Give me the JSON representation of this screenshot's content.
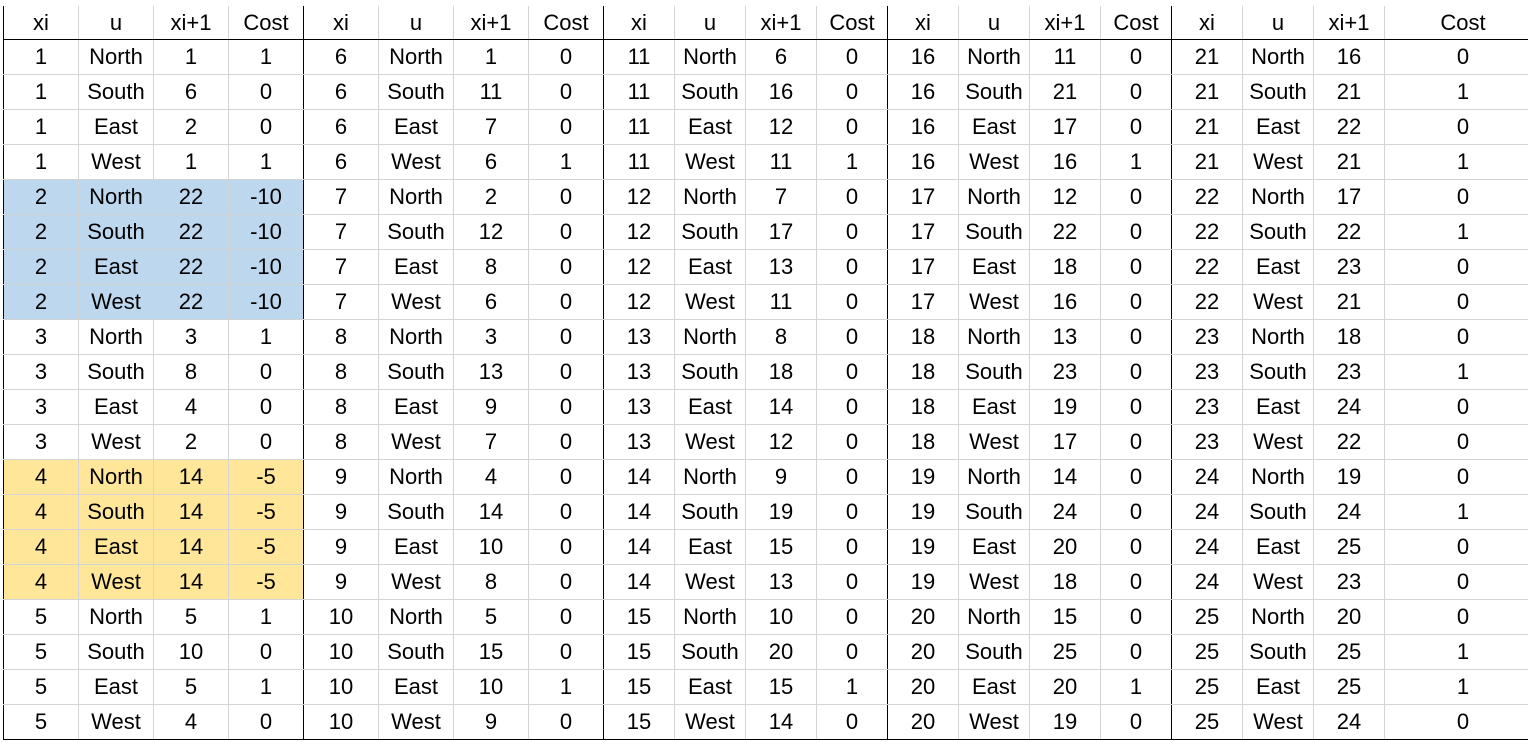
{
  "sheet": {
    "group_headers": [
      "xi",
      "u",
      "xi+1",
      "Cost"
    ],
    "colors": {
      "highlight_blue": "#bdd7ee",
      "highlight_yellow": "#ffe699",
      "gridline": "#d4d4d4",
      "group_border": "#000000"
    },
    "groups": [
      {
        "rows": [
          {
            "xi": "1",
            "u": "North",
            "next": "1",
            "cost": "1"
          },
          {
            "xi": "1",
            "u": "South",
            "next": "6",
            "cost": "0"
          },
          {
            "xi": "1",
            "u": "East",
            "next": "2",
            "cost": "0"
          },
          {
            "xi": "1",
            "u": "West",
            "next": "1",
            "cost": "1"
          },
          {
            "xi": "2",
            "u": "North",
            "next": "22",
            "cost": "-10",
            "highlight": "blue"
          },
          {
            "xi": "2",
            "u": "South",
            "next": "22",
            "cost": "-10",
            "highlight": "blue"
          },
          {
            "xi": "2",
            "u": "East",
            "next": "22",
            "cost": "-10",
            "highlight": "blue"
          },
          {
            "xi": "2",
            "u": "West",
            "next": "22",
            "cost": "-10",
            "highlight": "blue"
          },
          {
            "xi": "3",
            "u": "North",
            "next": "3",
            "cost": "1"
          },
          {
            "xi": "3",
            "u": "South",
            "next": "8",
            "cost": "0"
          },
          {
            "xi": "3",
            "u": "East",
            "next": "4",
            "cost": "0"
          },
          {
            "xi": "3",
            "u": "West",
            "next": "2",
            "cost": "0"
          },
          {
            "xi": "4",
            "u": "North",
            "next": "14",
            "cost": "-5",
            "highlight": "yellow"
          },
          {
            "xi": "4",
            "u": "South",
            "next": "14",
            "cost": "-5",
            "highlight": "yellow"
          },
          {
            "xi": "4",
            "u": "East",
            "next": "14",
            "cost": "-5",
            "highlight": "yellow"
          },
          {
            "xi": "4",
            "u": "West",
            "next": "14",
            "cost": "-5",
            "highlight": "yellow"
          },
          {
            "xi": "5",
            "u": "North",
            "next": "5",
            "cost": "1"
          },
          {
            "xi": "5",
            "u": "South",
            "next": "10",
            "cost": "0"
          },
          {
            "xi": "5",
            "u": "East",
            "next": "5",
            "cost": "1"
          },
          {
            "xi": "5",
            "u": "West",
            "next": "4",
            "cost": "0"
          }
        ]
      },
      {
        "rows": [
          {
            "xi": "6",
            "u": "North",
            "next": "1",
            "cost": "0"
          },
          {
            "xi": "6",
            "u": "South",
            "next": "11",
            "cost": "0"
          },
          {
            "xi": "6",
            "u": "East",
            "next": "7",
            "cost": "0"
          },
          {
            "xi": "6",
            "u": "West",
            "next": "6",
            "cost": "1"
          },
          {
            "xi": "7",
            "u": "North",
            "next": "2",
            "cost": "0"
          },
          {
            "xi": "7",
            "u": "South",
            "next": "12",
            "cost": "0"
          },
          {
            "xi": "7",
            "u": "East",
            "next": "8",
            "cost": "0"
          },
          {
            "xi": "7",
            "u": "West",
            "next": "6",
            "cost": "0"
          },
          {
            "xi": "8",
            "u": "North",
            "next": "3",
            "cost": "0"
          },
          {
            "xi": "8",
            "u": "South",
            "next": "13",
            "cost": "0"
          },
          {
            "xi": "8",
            "u": "East",
            "next": "9",
            "cost": "0"
          },
          {
            "xi": "8",
            "u": "West",
            "next": "7",
            "cost": "0"
          },
          {
            "xi": "9",
            "u": "North",
            "next": "4",
            "cost": "0"
          },
          {
            "xi": "9",
            "u": "South",
            "next": "14",
            "cost": "0"
          },
          {
            "xi": "9",
            "u": "East",
            "next": "10",
            "cost": "0"
          },
          {
            "xi": "9",
            "u": "West",
            "next": "8",
            "cost": "0"
          },
          {
            "xi": "10",
            "u": "North",
            "next": "5",
            "cost": "0"
          },
          {
            "xi": "10",
            "u": "South",
            "next": "15",
            "cost": "0"
          },
          {
            "xi": "10",
            "u": "East",
            "next": "10",
            "cost": "1"
          },
          {
            "xi": "10",
            "u": "West",
            "next": "9",
            "cost": "0"
          }
        ]
      },
      {
        "rows": [
          {
            "xi": "11",
            "u": "North",
            "next": "6",
            "cost": "0"
          },
          {
            "xi": "11",
            "u": "South",
            "next": "16",
            "cost": "0"
          },
          {
            "xi": "11",
            "u": "East",
            "next": "12",
            "cost": "0"
          },
          {
            "xi": "11",
            "u": "West",
            "next": "11",
            "cost": "1"
          },
          {
            "xi": "12",
            "u": "North",
            "next": "7",
            "cost": "0"
          },
          {
            "xi": "12",
            "u": "South",
            "next": "17",
            "cost": "0"
          },
          {
            "xi": "12",
            "u": "East",
            "next": "13",
            "cost": "0"
          },
          {
            "xi": "12",
            "u": "West",
            "next": "11",
            "cost": "0"
          },
          {
            "xi": "13",
            "u": "North",
            "next": "8",
            "cost": "0"
          },
          {
            "xi": "13",
            "u": "South",
            "next": "18",
            "cost": "0"
          },
          {
            "xi": "13",
            "u": "East",
            "next": "14",
            "cost": "0"
          },
          {
            "xi": "13",
            "u": "West",
            "next": "12",
            "cost": "0"
          },
          {
            "xi": "14",
            "u": "North",
            "next": "9",
            "cost": "0"
          },
          {
            "xi": "14",
            "u": "South",
            "next": "19",
            "cost": "0"
          },
          {
            "xi": "14",
            "u": "East",
            "next": "15",
            "cost": "0"
          },
          {
            "xi": "14",
            "u": "West",
            "next": "13",
            "cost": "0"
          },
          {
            "xi": "15",
            "u": "North",
            "next": "10",
            "cost": "0"
          },
          {
            "xi": "15",
            "u": "South",
            "next": "20",
            "cost": "0"
          },
          {
            "xi": "15",
            "u": "East",
            "next": "15",
            "cost": "1"
          },
          {
            "xi": "15",
            "u": "West",
            "next": "14",
            "cost": "0"
          }
        ]
      },
      {
        "rows": [
          {
            "xi": "16",
            "u": "North",
            "next": "11",
            "cost": "0"
          },
          {
            "xi": "16",
            "u": "South",
            "next": "21",
            "cost": "0"
          },
          {
            "xi": "16",
            "u": "East",
            "next": "17",
            "cost": "0"
          },
          {
            "xi": "16",
            "u": "West",
            "next": "16",
            "cost": "1"
          },
          {
            "xi": "17",
            "u": "North",
            "next": "12",
            "cost": "0"
          },
          {
            "xi": "17",
            "u": "South",
            "next": "22",
            "cost": "0"
          },
          {
            "xi": "17",
            "u": "East",
            "next": "18",
            "cost": "0"
          },
          {
            "xi": "17",
            "u": "West",
            "next": "16",
            "cost": "0"
          },
          {
            "xi": "18",
            "u": "North",
            "next": "13",
            "cost": "0"
          },
          {
            "xi": "18",
            "u": "South",
            "next": "23",
            "cost": "0"
          },
          {
            "xi": "18",
            "u": "East",
            "next": "19",
            "cost": "0"
          },
          {
            "xi": "18",
            "u": "West",
            "next": "17",
            "cost": "0"
          },
          {
            "xi": "19",
            "u": "North",
            "next": "14",
            "cost": "0"
          },
          {
            "xi": "19",
            "u": "South",
            "next": "24",
            "cost": "0"
          },
          {
            "xi": "19",
            "u": "East",
            "next": "20",
            "cost": "0"
          },
          {
            "xi": "19",
            "u": "West",
            "next": "18",
            "cost": "0"
          },
          {
            "xi": "20",
            "u": "North",
            "next": "15",
            "cost": "0"
          },
          {
            "xi": "20",
            "u": "South",
            "next": "25",
            "cost": "0"
          },
          {
            "xi": "20",
            "u": "East",
            "next": "20",
            "cost": "1"
          },
          {
            "xi": "20",
            "u": "West",
            "next": "19",
            "cost": "0"
          }
        ]
      },
      {
        "rows": [
          {
            "xi": "21",
            "u": "North",
            "next": "16",
            "cost": "0"
          },
          {
            "xi": "21",
            "u": "South",
            "next": "21",
            "cost": "1"
          },
          {
            "xi": "21",
            "u": "East",
            "next": "22",
            "cost": "0"
          },
          {
            "xi": "21",
            "u": "West",
            "next": "21",
            "cost": "1"
          },
          {
            "xi": "22",
            "u": "North",
            "next": "17",
            "cost": "0"
          },
          {
            "xi": "22",
            "u": "South",
            "next": "22",
            "cost": "1"
          },
          {
            "xi": "22",
            "u": "East",
            "next": "23",
            "cost": "0"
          },
          {
            "xi": "22",
            "u": "West",
            "next": "21",
            "cost": "0"
          },
          {
            "xi": "23",
            "u": "North",
            "next": "18",
            "cost": "0"
          },
          {
            "xi": "23",
            "u": "South",
            "next": "23",
            "cost": "1"
          },
          {
            "xi": "23",
            "u": "East",
            "next": "24",
            "cost": "0"
          },
          {
            "xi": "23",
            "u": "West",
            "next": "22",
            "cost": "0"
          },
          {
            "xi": "24",
            "u": "North",
            "next": "19",
            "cost": "0"
          },
          {
            "xi": "24",
            "u": "South",
            "next": "24",
            "cost": "1"
          },
          {
            "xi": "24",
            "u": "East",
            "next": "25",
            "cost": "0"
          },
          {
            "xi": "24",
            "u": "West",
            "next": "23",
            "cost": "0"
          },
          {
            "xi": "25",
            "u": "North",
            "next": "20",
            "cost": "0"
          },
          {
            "xi": "25",
            "u": "South",
            "next": "25",
            "cost": "1"
          },
          {
            "xi": "25",
            "u": "East",
            "next": "25",
            "cost": "1"
          },
          {
            "xi": "25",
            "u": "West",
            "next": "24",
            "cost": "0"
          }
        ]
      }
    ]
  }
}
